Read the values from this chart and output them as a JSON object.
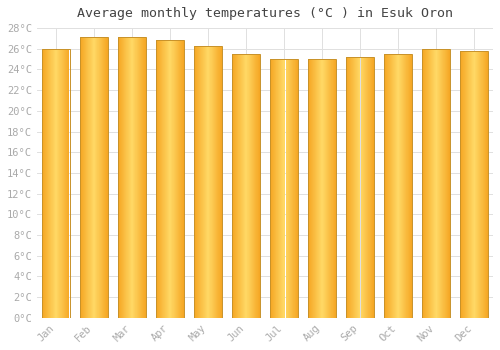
{
  "title": "Average monthly temperatures (°C ) in Esuk Oron",
  "months": [
    "Jan",
    "Feb",
    "Mar",
    "Apr",
    "May",
    "Jun",
    "Jul",
    "Aug",
    "Sep",
    "Oct",
    "Nov",
    "Dec"
  ],
  "values": [
    26.0,
    27.1,
    27.1,
    26.8,
    26.3,
    25.5,
    25.0,
    25.0,
    25.2,
    25.5,
    26.0,
    25.8
  ],
  "ylim": [
    0,
    28
  ],
  "yticks": [
    0,
    2,
    4,
    6,
    8,
    10,
    12,
    14,
    16,
    18,
    20,
    22,
    24,
    26,
    28
  ],
  "bar_color_center": "#FFD966",
  "bar_color_edge": "#F5A623",
  "bar_outline_color": "#C8922A",
  "background_color": "#FFFFFF",
  "grid_color": "#E0E0E0",
  "title_fontsize": 9.5,
  "tick_fontsize": 7.5,
  "title_color": "#444444",
  "tick_color": "#AAAAAA"
}
